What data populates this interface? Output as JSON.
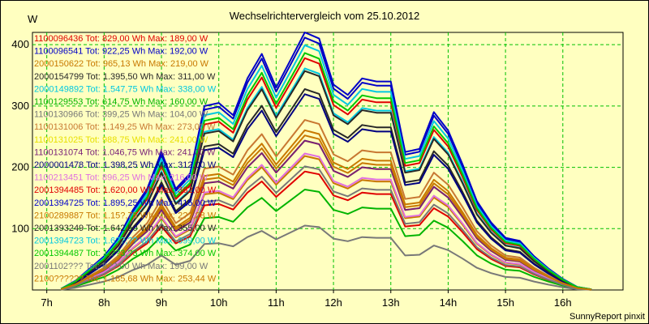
{
  "chart_data": {
    "type": "line",
    "title": "Wechselrichtervergleich vom 25.10.2012",
    "ylabel": "W",
    "xlabel": "",
    "footer": "SunnyReport pinxit",
    "ylim": [
      0,
      420
    ],
    "xlim": [
      6.75,
      17.05
    ],
    "grid": true,
    "legend_position": "top-left",
    "yticks": [
      100,
      200,
      300,
      400
    ],
    "xticks": [
      {
        "value": 7,
        "label": "7h"
      },
      {
        "value": 8,
        "label": "8h"
      },
      {
        "value": 9,
        "label": "9h"
      },
      {
        "value": 10,
        "label": "10h"
      },
      {
        "value": 11,
        "label": "11h"
      },
      {
        "value": 12,
        "label": "12h"
      },
      {
        "value": 13,
        "label": "13h"
      },
      {
        "value": 14,
        "label": "14h"
      },
      {
        "value": 15,
        "label": "15h"
      },
      {
        "value": 16,
        "label": "16h"
      }
    ],
    "x": [
      7.25,
      7.5,
      7.75,
      8.0,
      8.25,
      8.5,
      8.75,
      9.0,
      9.25,
      9.5,
      9.75,
      10.0,
      10.25,
      10.5,
      10.75,
      11.0,
      11.25,
      11.5,
      11.75,
      12.0,
      12.25,
      12.5,
      12.75,
      13.0,
      13.25,
      13.5,
      13.75,
      14.0,
      14.25,
      14.5,
      14.75,
      15.0,
      15.25,
      15.5,
      15.75,
      16.0,
      16.25,
      16.5
    ],
    "series": [
      {
        "name": "1100096436 Tot: 829,00 Wh Max: 189,00 W",
        "color": "#e00000",
        "scale": 0.46
      },
      {
        "name": "1100096541 Tot: 922,25 Wh Max: 192,00 W",
        "color": "#0000c8",
        "scale": 1.0
      },
      {
        "name": "2000150622 Tot: 965,13 Wh Max: 219,00 W",
        "color": "#c87800",
        "scale": 0.52
      },
      {
        "name": "2000154799 Tot: 1.395,50 Wh Max: 311,00 W",
        "color": "#282828",
        "scale": 0.78
      },
      {
        "name": "2000149892 Tot: 1.547,75 Wh Max: 338,00 W",
        "color": "#00c8e0",
        "scale": 0.86
      },
      {
        "name": "1100129553 Tot: 614,75 Wh Max: 160,00 W",
        "color": "#00b400",
        "scale": 0.39
      },
      {
        "name": "1100130966 Tot: 399,25 Wh Max: 104,00 W",
        "color": "#787878",
        "scale": 0.25
      },
      {
        "name": "1100131006 Tot: 1.149,25 Wh Max: 273,00 W",
        "color": "#c87832",
        "scale": 0.66
      },
      {
        "name": "1100131025 Tot: 988,75 Wh Max: 241,00 W",
        "color": "#e8e000",
        "scale": 0.58
      },
      {
        "name": "1100131074 Tot: 1.046,75 Wh Max: 241,00 W",
        "color": "#781e78",
        "scale": 0.58
      },
      {
        "name": "2000001478 Tot: 1.398,25 Wh Max: 312,00 W",
        "color": "#000080",
        "scale": 0.76
      },
      {
        "name": "1100213451 Tot: 896,25 Wh Max: 216,00 W",
        "color": "#e070e0",
        "scale": 0.53
      },
      {
        "name": "2001394485 Tot: 1.620,00 Wh Max: 362,00 W",
        "color": "#e00000",
        "scale": 0.9
      },
      {
        "name": "2001394725 Tot: 1.895,25 Wh Max: 415,00 W",
        "color": "#0000c8",
        "scale": 0.98
      },
      {
        "name": "2100289887 Tot: 1.15?,75 Wh Max: 2??,28 W",
        "color": "#c87800",
        "scale": 0.62
      },
      {
        "name": "2001393249 Tot: 1.642,50 Wh Max: 355,00 W",
        "color": "#282828",
        "scale": 0.85
      },
      {
        "name": "2001394723 Tot: 1.6??,?? Wh Max: 399,00 W",
        "color": "#00c8e0",
        "scale": 0.95
      },
      {
        "name": "2001394487 Tot: 1.??3,?3 Wh Max: 374,00 W",
        "color": "#00c800",
        "scale": 0.92
      },
      {
        "name": "2001102??? Tot: 8??,00 Wh Max: 199,00 W",
        "color": "#787878",
        "scale": 0.48
      },
      {
        "name": "2100?????? Tot: 1.185,68 Wh Max: 253,44 W",
        "color": "#c87800",
        "scale": 0.6
      }
    ],
    "base_profile": [
      2,
      15,
      35,
      55,
      85,
      130,
      165,
      225,
      165,
      190,
      300,
      305,
      285,
      345,
      385,
      330,
      375,
      420,
      410,
      335,
      318,
      345,
      340,
      340,
      225,
      230,
      290,
      260,
      205,
      145,
      110,
      85,
      80,
      55,
      35,
      18,
      5,
      1
    ]
  }
}
